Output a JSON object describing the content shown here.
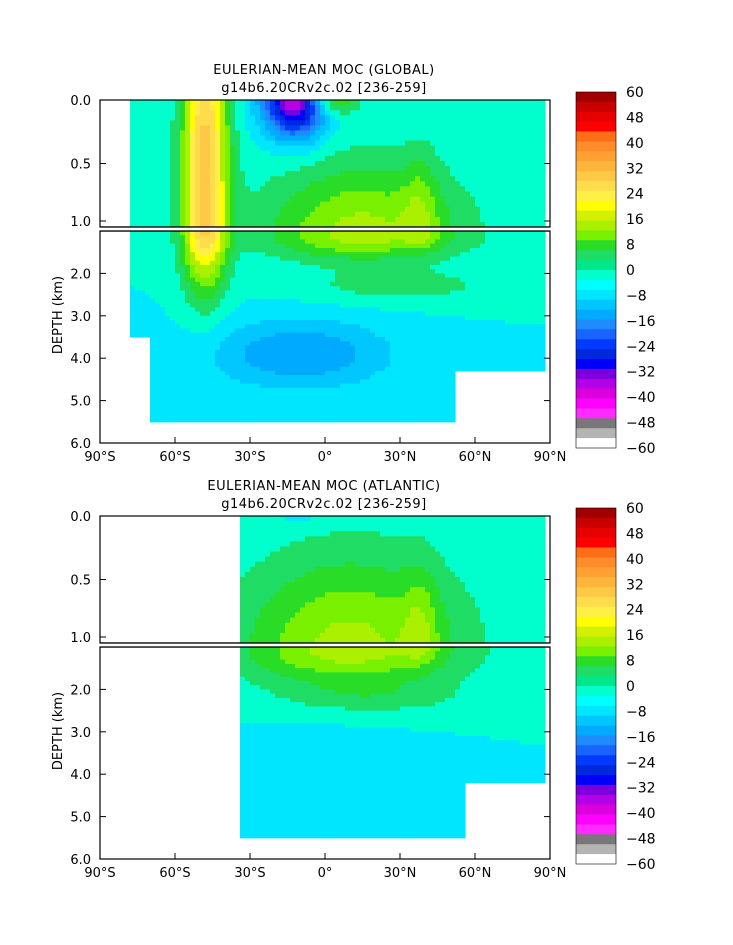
{
  "chart_data": [
    {
      "type": "heatmap",
      "title": "EULERIAN-MEAN MOC (GLOBAL)",
      "subtitle": "g14b6.20CRv2c.02 [236-259]",
      "ylabel": "DEPTH (km)",
      "x_range": [
        -90,
        90
      ],
      "y_range": [
        0,
        6
      ],
      "x_ticks": [
        "90°S",
        "60°S",
        "30°S",
        "0°",
        "30°N",
        "60°N",
        "90°N"
      ],
      "y_ticks": [
        "0.0",
        "0.5",
        "1.0",
        "2.0",
        "3.0",
        "4.0",
        "5.0",
        "6.0"
      ],
      "upper_panel_depth_km": [
        0,
        1
      ],
      "lower_panel_depth_km": [
        1,
        6
      ],
      "contour_levels": [
        -60,
        -48,
        -40,
        -32,
        -24,
        -16,
        -8,
        0,
        8,
        16,
        24,
        32,
        40,
        48,
        60
      ],
      "features": [
        {
          "description": "positive cell",
          "lat": -48,
          "depth_km": 0.6,
          "value": 32
        },
        {
          "description": "negative cell",
          "lat": -12,
          "depth_km": 0.05,
          "value": -40
        },
        {
          "description": "positive cell",
          "lat": 38,
          "depth_km": 0.9,
          "value": 24
        },
        {
          "description": "negative deep cell",
          "lat": -10,
          "depth_km": 3.8,
          "value": -8
        }
      ]
    },
    {
      "type": "heatmap",
      "title": "EULERIAN-MEAN MOC (ATLANTIC)",
      "subtitle": "g14b6.20CRv2c.02 [236-259]",
      "ylabel": "DEPTH (km)",
      "x_range": [
        -90,
        90
      ],
      "y_range": [
        0,
        6
      ],
      "x_ticks": [
        "90°S",
        "60°S",
        "30°S",
        "0°",
        "30°N",
        "60°N",
        "90°N"
      ],
      "y_ticks": [
        "0.0",
        "0.5",
        "1.0",
        "2.0",
        "3.0",
        "4.0",
        "5.0",
        "6.0"
      ],
      "upper_panel_depth_km": [
        0,
        1
      ],
      "lower_panel_depth_km": [
        1,
        6
      ],
      "contour_levels": [
        -60,
        -48,
        -40,
        -32,
        -24,
        -16,
        -8,
        0,
        8,
        16,
        24,
        32,
        40,
        48,
        60
      ],
      "features": [
        {
          "description": "positive cell",
          "lat": 38,
          "depth_km": 0.9,
          "value": 24
        },
        {
          "description": "positive cell",
          "lat": 0,
          "depth_km": 1.5,
          "value": 16
        }
      ]
    }
  ],
  "colorbar": {
    "labels": [
      "60",
      "48",
      "40",
      "32",
      "24",
      "16",
      "8",
      "0",
      "-8",
      "-16",
      "-24",
      "-32",
      "-40",
      "-48",
      "-60"
    ],
    "colors": [
      "#ffffff",
      "#b4b4b4",
      "#787878",
      "#ff2aff",
      "#ff00ff",
      "#dc00dc",
      "#b400e6",
      "#7800dc",
      "#0000ff",
      "#0028dc",
      "#003cff",
      "#1a64ff",
      "#1e8cff",
      "#00aaff",
      "#00c8ff",
      "#00e6ff",
      "#00ffff",
      "#00ffcc",
      "#00e68c",
      "#1edc64",
      "#28dc28",
      "#78f000",
      "#aaf000",
      "#d2f000",
      "#ffff00",
      "#ffef46",
      "#ffdc4b",
      "#ffc846",
      "#ffb43c",
      "#ffa032",
      "#ff8c28",
      "#ff6e14",
      "#ff0000",
      "#e60000",
      "#c80000",
      "#a00000"
    ]
  }
}
